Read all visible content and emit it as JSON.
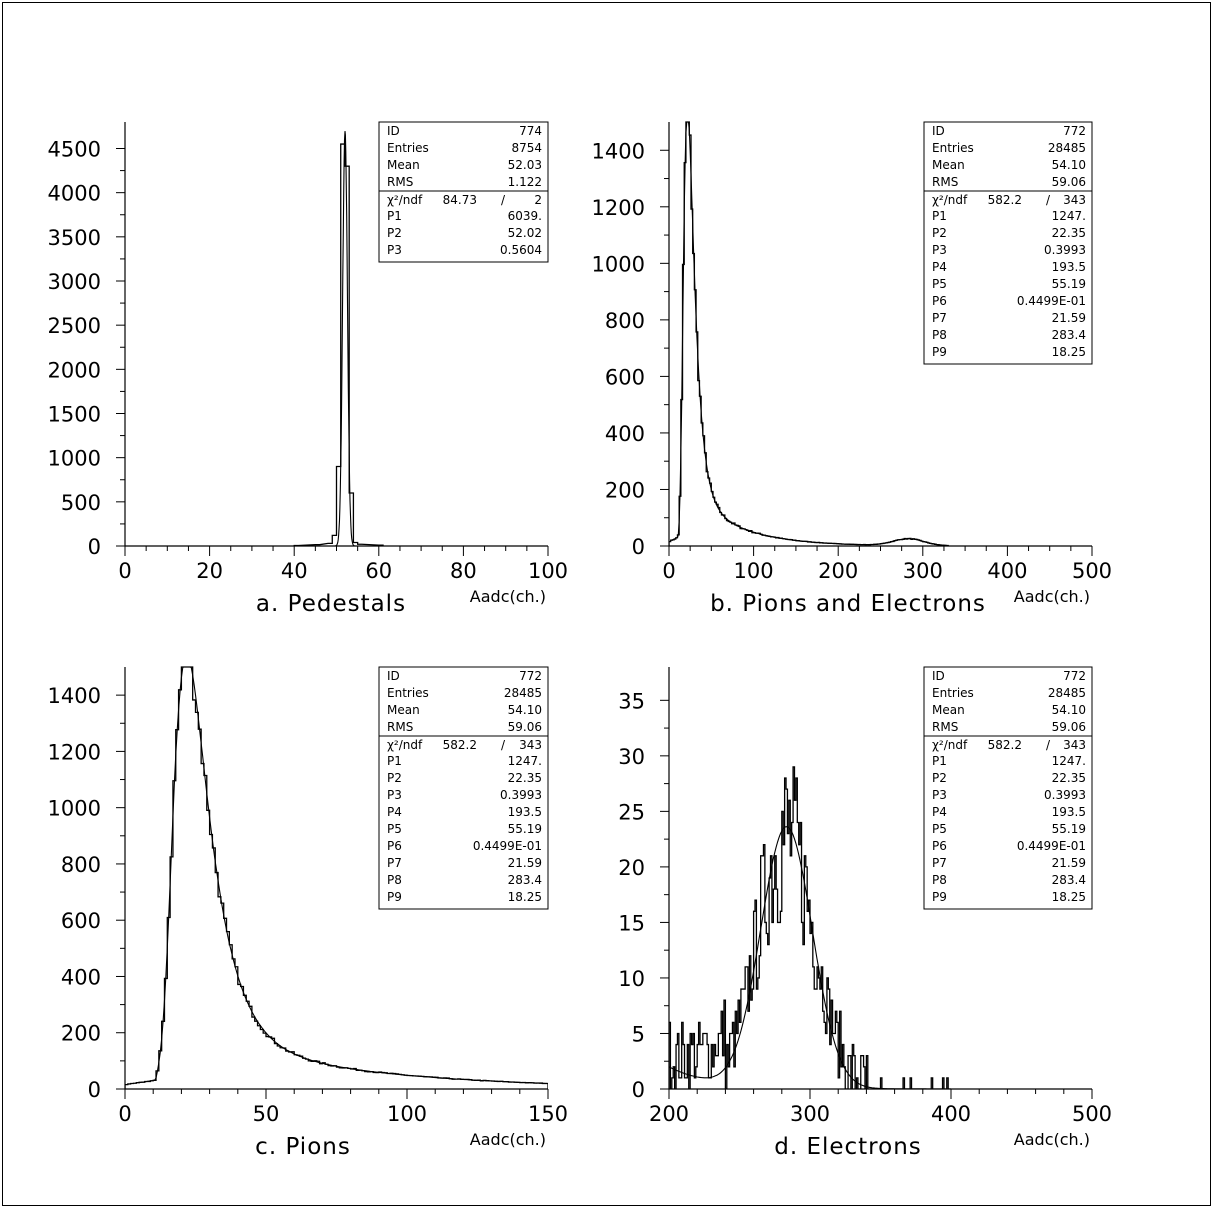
{
  "chart_data": [
    {
      "type": "histogram",
      "caption": "a. Pedestals",
      "xlabel": "Aadc(ch.)",
      "xlim": [
        0,
        100
      ],
      "ylim": [
        0,
        4800
      ],
      "xticks": [
        0,
        20,
        40,
        60,
        80,
        100
      ],
      "yticks": [
        0,
        500,
        1000,
        1500,
        2000,
        2500,
        3000,
        3500,
        4000,
        4500
      ],
      "xtick_labels": [
        "0",
        "20",
        "40",
        "60",
        "80",
        "100"
      ],
      "ytick_labels": [
        "0",
        "500",
        "1000",
        "1500",
        "2000",
        "2500",
        "3000",
        "3500",
        "4000",
        "4500"
      ],
      "stats": [
        {
          "label": "ID",
          "value": "774"
        },
        {
          "label": "Entries",
          "value": "8754"
        },
        {
          "label": "Mean",
          "value": "52.03"
        },
        {
          "label": "RMS",
          "value": "1.122"
        }
      ],
      "fit": {
        "chi2_label": "χ²/ndf",
        "chi2": "84.73",
        "ndf": "2"
      },
      "params": [
        {
          "label": "P1",
          "value": "6039."
        },
        {
          "label": "P2",
          "value": "52.02"
        },
        {
          "label": "P3",
          "value": "0.5604"
        }
      ],
      "bins": {
        "x": [
          40,
          45,
          48,
          49,
          50,
          51,
          52,
          53,
          54,
          55,
          60
        ],
        "y": [
          5,
          15,
          30,
          120,
          900,
          4550,
          4300,
          600,
          40,
          20,
          10
        ]
      }
    },
    {
      "type": "histogram",
      "caption": "b. Pions and Electrons",
      "xlabel": "Aadc(ch.)",
      "xlim": [
        0,
        500
      ],
      "ylim": [
        0,
        1500
      ],
      "xticks": [
        0,
        100,
        200,
        300,
        400,
        500
      ],
      "yticks": [
        0,
        200,
        400,
        600,
        800,
        1000,
        1200,
        1400
      ],
      "xtick_labels": [
        "0",
        "100",
        "200",
        "300",
        "400",
        "500"
      ],
      "ytick_labels": [
        "0",
        "200",
        "400",
        "600",
        "800",
        "1000",
        "1200",
        "1400"
      ],
      "stats": [
        {
          "label": "ID",
          "value": "772"
        },
        {
          "label": "Entries",
          "value": "28485"
        },
        {
          "label": "Mean",
          "value": "54.10"
        },
        {
          "label": "RMS",
          "value": "59.06"
        }
      ],
      "fit": {
        "chi2_label": "χ²/ndf",
        "chi2": "582.2",
        "ndf": "343"
      },
      "params": [
        {
          "label": "P1",
          "value": "1247."
        },
        {
          "label": "P2",
          "value": "22.35"
        },
        {
          "label": "P3",
          "value": "0.3993"
        },
        {
          "label": "P4",
          "value": "193.5"
        },
        {
          "label": "P5",
          "value": "55.19"
        },
        {
          "label": "P6",
          "value": "0.4499E-01"
        },
        {
          "label": "P7",
          "value": "21.59"
        },
        {
          "label": "P8",
          "value": "283.4"
        },
        {
          "label": "P9",
          "value": "18.25"
        }
      ],
      "peak": {
        "x": 22,
        "y": 1410
      }
    },
    {
      "type": "histogram",
      "caption": "c. Pions",
      "xlabel": "Aadc(ch.)",
      "xlim": [
        0,
        150
      ],
      "ylim": [
        0,
        1500
      ],
      "xticks": [
        0,
        50,
        100,
        150
      ],
      "yticks": [
        0,
        200,
        400,
        600,
        800,
        1000,
        1200,
        1400
      ],
      "xtick_labels": [
        "0",
        "50",
        "100",
        "150"
      ],
      "ytick_labels": [
        "0",
        "200",
        "400",
        "600",
        "800",
        "1000",
        "1200",
        "1400"
      ],
      "stats": [
        {
          "label": "ID",
          "value": "772"
        },
        {
          "label": "Entries",
          "value": "28485"
        },
        {
          "label": "Mean",
          "value": "54.10"
        },
        {
          "label": "RMS",
          "value": "59.06"
        }
      ],
      "fit": {
        "chi2_label": "χ²/ndf",
        "chi2": "582.2",
        "ndf": "343"
      },
      "params": [
        {
          "label": "P1",
          "value": "1247."
        },
        {
          "label": "P2",
          "value": "22.35"
        },
        {
          "label": "P3",
          "value": "0.3993"
        },
        {
          "label": "P4",
          "value": "193.5"
        },
        {
          "label": "P5",
          "value": "55.19"
        },
        {
          "label": "P6",
          "value": "0.4499E-01"
        },
        {
          "label": "P7",
          "value": "21.59"
        },
        {
          "label": "P8",
          "value": "283.4"
        },
        {
          "label": "P9",
          "value": "18.25"
        }
      ],
      "peak": {
        "x": 23,
        "y": 1400
      }
    },
    {
      "type": "histogram",
      "caption": "d. Electrons",
      "xlabel": "Aadc(ch.)",
      "xlim": [
        200,
        500
      ],
      "ylim": [
        0,
        38
      ],
      "xticks": [
        200,
        300,
        400,
        500
      ],
      "yticks": [
        0,
        5,
        10,
        15,
        20,
        25,
        30,
        35
      ],
      "xtick_labels": [
        "200",
        "300",
        "400",
        "500"
      ],
      "ytick_labels": [
        "0",
        "5",
        "10",
        "15",
        "20",
        "25",
        "30",
        "35"
      ],
      "stats": [
        {
          "label": "ID",
          "value": "772"
        },
        {
          "label": "Entries",
          "value": "28485"
        },
        {
          "label": "Mean",
          "value": "54.10"
        },
        {
          "label": "RMS",
          "value": "59.06"
        }
      ],
      "fit": {
        "chi2_label": "χ²/ndf",
        "chi2": "582.2",
        "ndf": "343"
      },
      "params": [
        {
          "label": "P1",
          "value": "1247."
        },
        {
          "label": "P2",
          "value": "22.35"
        },
        {
          "label": "P3",
          "value": "0.3993"
        },
        {
          "label": "P4",
          "value": "193.5"
        },
        {
          "label": "P5",
          "value": "55.19"
        },
        {
          "label": "P6",
          "value": "0.4499E-01"
        },
        {
          "label": "P7",
          "value": "21.59"
        },
        {
          "label": "P8",
          "value": "283.4"
        },
        {
          "label": "P9",
          "value": "18.25"
        }
      ],
      "peak": {
        "x": 283,
        "y": 24
      }
    }
  ]
}
